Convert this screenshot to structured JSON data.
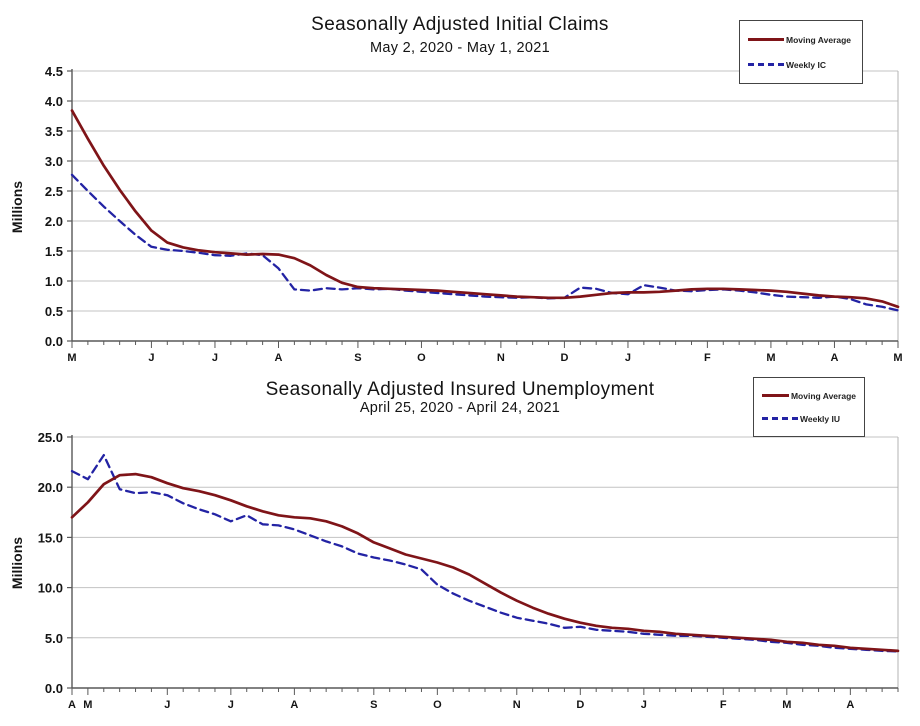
{
  "page": {
    "background": "#ffffff"
  },
  "colors": {
    "moving_average_line": "#7f1418",
    "weekly_line": "#2323a4",
    "gridline": "#c3c3c3",
    "axis": "#595959",
    "plot_right_border": "#b3b3b3"
  },
  "chart_data": [
    {
      "type": "line",
      "title": "Seasonally Adjusted Initial Claims",
      "subtitle": "May 2, 2020 - May 1, 2021",
      "ylabel": "Millions",
      "xlabel": "",
      "x_unit": "week",
      "weeks": 53,
      "ylim": [
        0,
        4.5
      ],
      "y_step": 0.5,
      "y_ticks": [
        "0.0",
        "0.5",
        "1.0",
        "1.5",
        "2.0",
        "2.5",
        "3.0",
        "3.5",
        "4.0",
        "4.5"
      ],
      "grid": "horizontal",
      "legend_position": "top-right",
      "month_ticks": [
        {
          "label": "M",
          "week": 0
        },
        {
          "label": "J",
          "week": 5
        },
        {
          "label": "J",
          "week": 9
        },
        {
          "label": "A",
          "week": 13
        },
        {
          "label": "S",
          "week": 18
        },
        {
          "label": "O",
          "week": 22
        },
        {
          "label": "N",
          "week": 27
        },
        {
          "label": "D",
          "week": 31
        },
        {
          "label": "J",
          "week": 35
        },
        {
          "label": "F",
          "week": 40
        },
        {
          "label": "M",
          "week": 44
        },
        {
          "label": "A",
          "week": 48
        },
        {
          "label": "M",
          "week": 52
        }
      ],
      "series": [
        {
          "name": "Moving Average",
          "style": "solid",
          "color": "#7f1418",
          "values": [
            3.84,
            3.37,
            2.92,
            2.52,
            2.16,
            1.84,
            1.64,
            1.56,
            1.51,
            1.48,
            1.46,
            1.44,
            1.45,
            1.44,
            1.38,
            1.26,
            1.1,
            0.97,
            0.9,
            0.88,
            0.87,
            0.86,
            0.85,
            0.84,
            0.82,
            0.8,
            0.78,
            0.76,
            0.74,
            0.73,
            0.72,
            0.72,
            0.74,
            0.77,
            0.8,
            0.81,
            0.81,
            0.82,
            0.84,
            0.86,
            0.87,
            0.87,
            0.86,
            0.85,
            0.84,
            0.82,
            0.79,
            0.76,
            0.74,
            0.73,
            0.71,
            0.66,
            0.57
          ]
        },
        {
          "name": "Weekly IC",
          "style": "dashed",
          "color": "#2323a4",
          "values": [
            2.77,
            2.5,
            2.24,
            2.0,
            1.77,
            1.57,
            1.52,
            1.5,
            1.47,
            1.43,
            1.42,
            1.46,
            1.43,
            1.21,
            0.86,
            0.84,
            0.88,
            0.86,
            0.88,
            0.86,
            0.87,
            0.84,
            0.82,
            0.8,
            0.78,
            0.76,
            0.74,
            0.73,
            0.72,
            0.73,
            0.71,
            0.72,
            0.89,
            0.87,
            0.8,
            0.78,
            0.93,
            0.89,
            0.84,
            0.83,
            0.85,
            0.86,
            0.84,
            0.81,
            0.77,
            0.74,
            0.73,
            0.72,
            0.74,
            0.7,
            0.61,
            0.57,
            0.51
          ]
        }
      ]
    },
    {
      "type": "line",
      "title": "Seasonally Adjusted Insured Unemployment",
      "subtitle": "April 25, 2020 - April 24, 2021",
      "ylabel": "Millions",
      "xlabel": "",
      "x_unit": "week",
      "weeks": 53,
      "ylim": [
        0,
        25
      ],
      "y_step": 5,
      "y_ticks": [
        "0.0",
        "5.0",
        "10.0",
        "15.0",
        "20.0",
        "25.0"
      ],
      "grid": "horizontal",
      "legend_position": "top-right",
      "month_ticks": [
        {
          "label": "A",
          "week": 0
        },
        {
          "label": "M",
          "week": 1
        },
        {
          "label": "J",
          "week": 6
        },
        {
          "label": "J",
          "week": 10
        },
        {
          "label": "A",
          "week": 14
        },
        {
          "label": "S",
          "week": 19
        },
        {
          "label": "O",
          "week": 23
        },
        {
          "label": "N",
          "week": 28
        },
        {
          "label": "D",
          "week": 32
        },
        {
          "label": "J",
          "week": 36
        },
        {
          "label": "F",
          "week": 41
        },
        {
          "label": "M",
          "week": 45
        },
        {
          "label": "A",
          "week": 49
        }
      ],
      "series": [
        {
          "name": "Moving Average",
          "style": "solid",
          "color": "#7f1418",
          "values": [
            17.0,
            18.5,
            20.3,
            21.2,
            21.3,
            21.0,
            20.4,
            19.9,
            19.6,
            19.2,
            18.7,
            18.1,
            17.6,
            17.2,
            17.0,
            16.9,
            16.6,
            16.1,
            15.4,
            14.5,
            13.9,
            13.3,
            12.9,
            12.5,
            12.0,
            11.3,
            10.4,
            9.5,
            8.7,
            8.0,
            7.4,
            6.9,
            6.5,
            6.2,
            6.0,
            5.9,
            5.7,
            5.6,
            5.4,
            5.3,
            5.2,
            5.1,
            5.0,
            4.9,
            4.8,
            4.6,
            4.5,
            4.3,
            4.2,
            4.0,
            3.9,
            3.8,
            3.7
          ]
        },
        {
          "name": "Weekly IU",
          "style": "dashed",
          "color": "#2323a4",
          "values": [
            21.6,
            20.8,
            23.2,
            19.8,
            19.4,
            19.5,
            19.2,
            18.4,
            17.8,
            17.3,
            16.6,
            17.2,
            16.3,
            16.2,
            15.8,
            15.2,
            14.6,
            14.1,
            13.4,
            13.0,
            12.7,
            12.3,
            11.8,
            10.3,
            9.4,
            8.7,
            8.1,
            7.5,
            7.0,
            6.7,
            6.4,
            6.0,
            6.1,
            5.8,
            5.7,
            5.6,
            5.4,
            5.3,
            5.2,
            5.2,
            5.1,
            5.0,
            4.9,
            4.8,
            4.6,
            4.5,
            4.3,
            4.2,
            4.0,
            3.9,
            3.8,
            3.7,
            3.65
          ]
        }
      ]
    }
  ]
}
